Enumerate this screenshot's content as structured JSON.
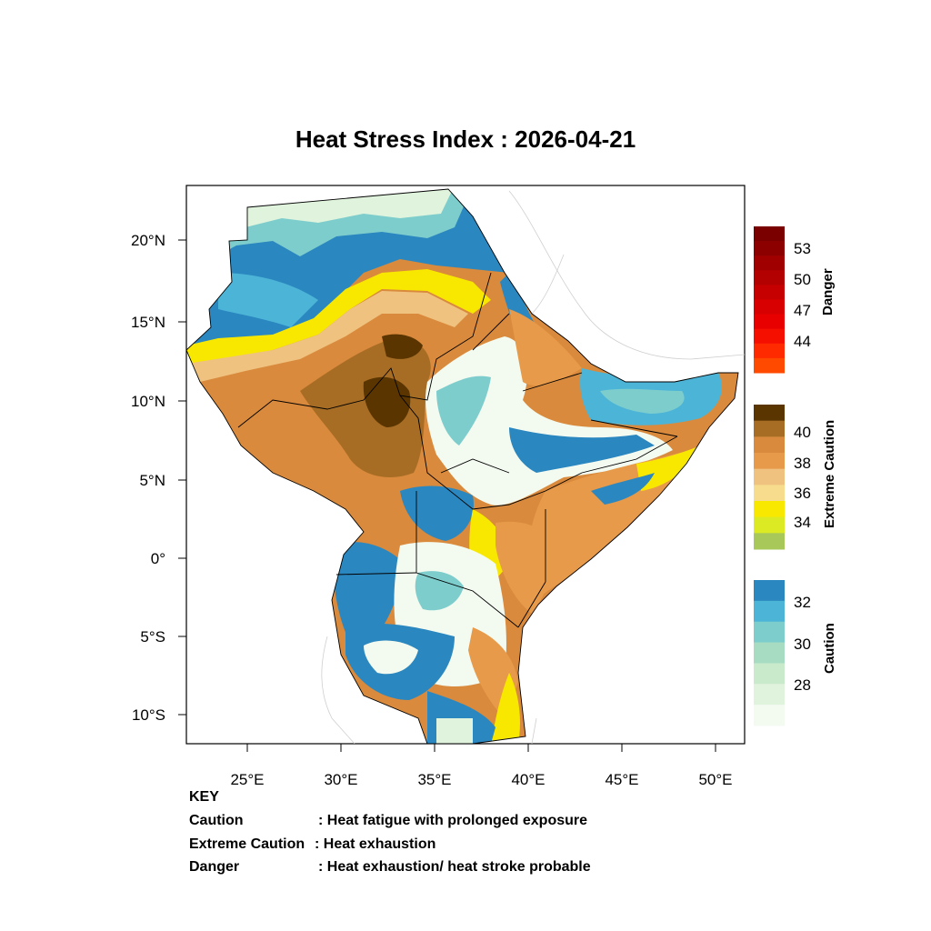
{
  "title": "Heat Stress Index : 2026-04-21",
  "axes": {
    "lat_labels": [
      "20°N",
      "15°N",
      "10°N",
      "5°N",
      "0°",
      "5°S",
      "10°S"
    ],
    "lon_labels": [
      "25°E",
      "30°E",
      "35°E",
      "40°E",
      "45°E",
      "50°E"
    ]
  },
  "legend": {
    "danger": {
      "label": "Danger",
      "ticks": [
        "53",
        "50",
        "47",
        "44"
      ],
      "colors": [
        "#7a0000",
        "#8d0000",
        "#a00000",
        "#b30000",
        "#c60000",
        "#d80000",
        "#e80000",
        "#f50f00",
        "#ff2a00",
        "#ff4a00"
      ]
    },
    "extreme": {
      "label": "Extreme Caution",
      "ticks": [
        "40",
        "38",
        "36",
        "34"
      ],
      "colors": [
        "#5a3500",
        "#a86d24",
        "#d98a3c",
        "#e79a4a",
        "#f0c27f",
        "#f6dc8c",
        "#f8e800",
        "#dcea24",
        "#a8c95a"
      ]
    },
    "caution": {
      "label": "Caution",
      "ticks": [
        "32",
        "30",
        "28"
      ],
      "colors": [
        "#2b87bf",
        "#4cb4d7",
        "#7ecdcd",
        "#a8dcc2",
        "#c9ebcb",
        "#e0f3dc",
        "#f3faf0"
      ]
    }
  },
  "key": {
    "heading": "KEY",
    "rows": [
      {
        "term": "Caution",
        "desc": ": Heat fatigue with prolonged exposure"
      },
      {
        "term": "Extreme Caution",
        "desc": " : Heat exhaustion"
      },
      {
        "term": "Danger",
        "desc": ": Heat exhaustion/ heat stroke probable"
      }
    ]
  }
}
